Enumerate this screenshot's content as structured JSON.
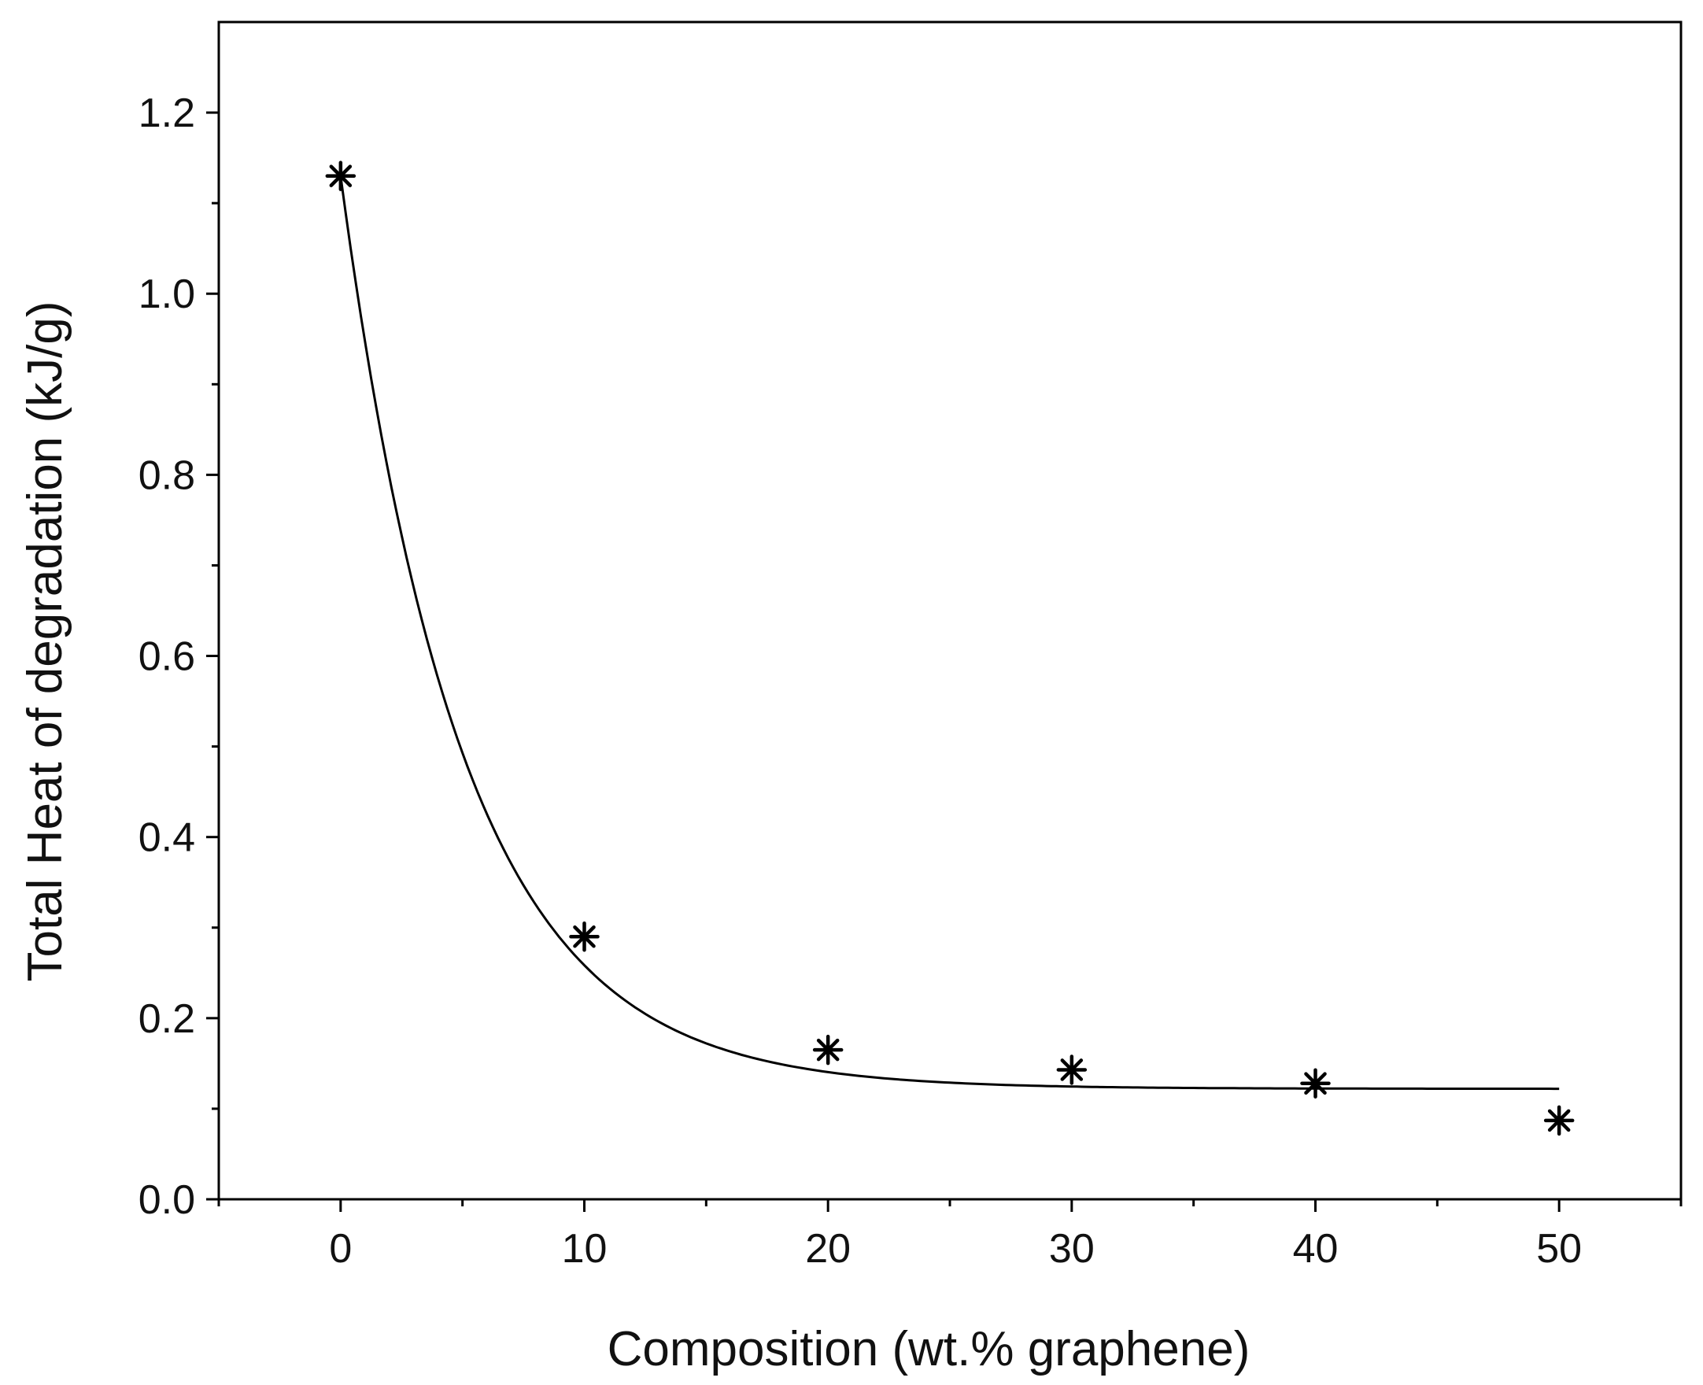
{
  "chart_data": {
    "type": "scatter",
    "xlabel": "Composition (wt.% graphene)",
    "ylabel": "Total Heat of degradation (kJ/g)",
    "xlim": [
      -5,
      55
    ],
    "ylim": [
      0,
      1.3
    ],
    "x_ticks": [
      0,
      10,
      20,
      30,
      40,
      50
    ],
    "x_tick_labels": [
      "0",
      "10",
      "20",
      "30",
      "40",
      "50"
    ],
    "x_minor_ticks": [
      -5,
      5,
      15,
      25,
      35,
      45,
      55
    ],
    "y_ticks": [
      0,
      0.2,
      0.4,
      0.6,
      0.8,
      1.0,
      1.2
    ],
    "y_tick_labels": [
      "0.0",
      "0.2",
      "0.4",
      "0.6",
      "0.8",
      "1.0",
      "1.2"
    ],
    "y_minor_ticks": [
      0.1,
      0.3,
      0.5,
      0.7,
      0.9,
      1.1
    ],
    "marker": "asterisk",
    "series": [
      {
        "x": [
          0,
          10,
          20,
          30,
          40,
          50
        ],
        "y": [
          1.13,
          0.29,
          0.165,
          0.143,
          0.128,
          0.087
        ]
      }
    ],
    "fit_curve": {
      "model": "exponential decay",
      "x_range": [
        0,
        50
      ],
      "y0": 0.122,
      "A": 1.008,
      "t": 5.0
    },
    "grid": false,
    "legend": "none",
    "colors": {
      "line": "#000000",
      "marker": "#000000",
      "axes": "#000000"
    }
  }
}
